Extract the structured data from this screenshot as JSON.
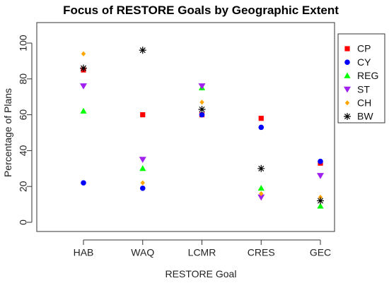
{
  "chart_data": {
    "type": "scatter",
    "title": "Focus of RESTORE Goals by Geographic Extent",
    "xlabel": "RESTORE Goal",
    "ylabel": "Percentage of Plans",
    "categories": [
      "HAB",
      "WAQ",
      "LCMR",
      "CRES",
      "GEC"
    ],
    "ylim": [
      0,
      100
    ],
    "yticks": [
      0,
      20,
      40,
      60,
      80,
      100
    ],
    "grid": false,
    "legend_position": "top-right",
    "series": [
      {
        "name": "CP",
        "color": "#ff0000",
        "marker": "square",
        "values": [
          85,
          60,
          60,
          58,
          33
        ]
      },
      {
        "name": "CY",
        "color": "#0000ff",
        "marker": "circle",
        "values": [
          22,
          19,
          60,
          53,
          34
        ]
      },
      {
        "name": "REG",
        "color": "#00ff00",
        "marker": "triangle-up",
        "values": [
          62,
          30,
          75,
          19,
          9
        ]
      },
      {
        "name": "ST",
        "color": "#a020f0",
        "marker": "triangle-down",
        "values": [
          76,
          35,
          76,
          14,
          26
        ]
      },
      {
        "name": "CH",
        "color": "#ffa500",
        "marker": "diamond",
        "values": [
          94,
          22,
          67,
          16,
          14
        ]
      },
      {
        "name": "BW",
        "color": "#000000",
        "marker": "asterisk",
        "values": [
          86,
          96,
          63,
          30,
          12
        ]
      }
    ]
  }
}
